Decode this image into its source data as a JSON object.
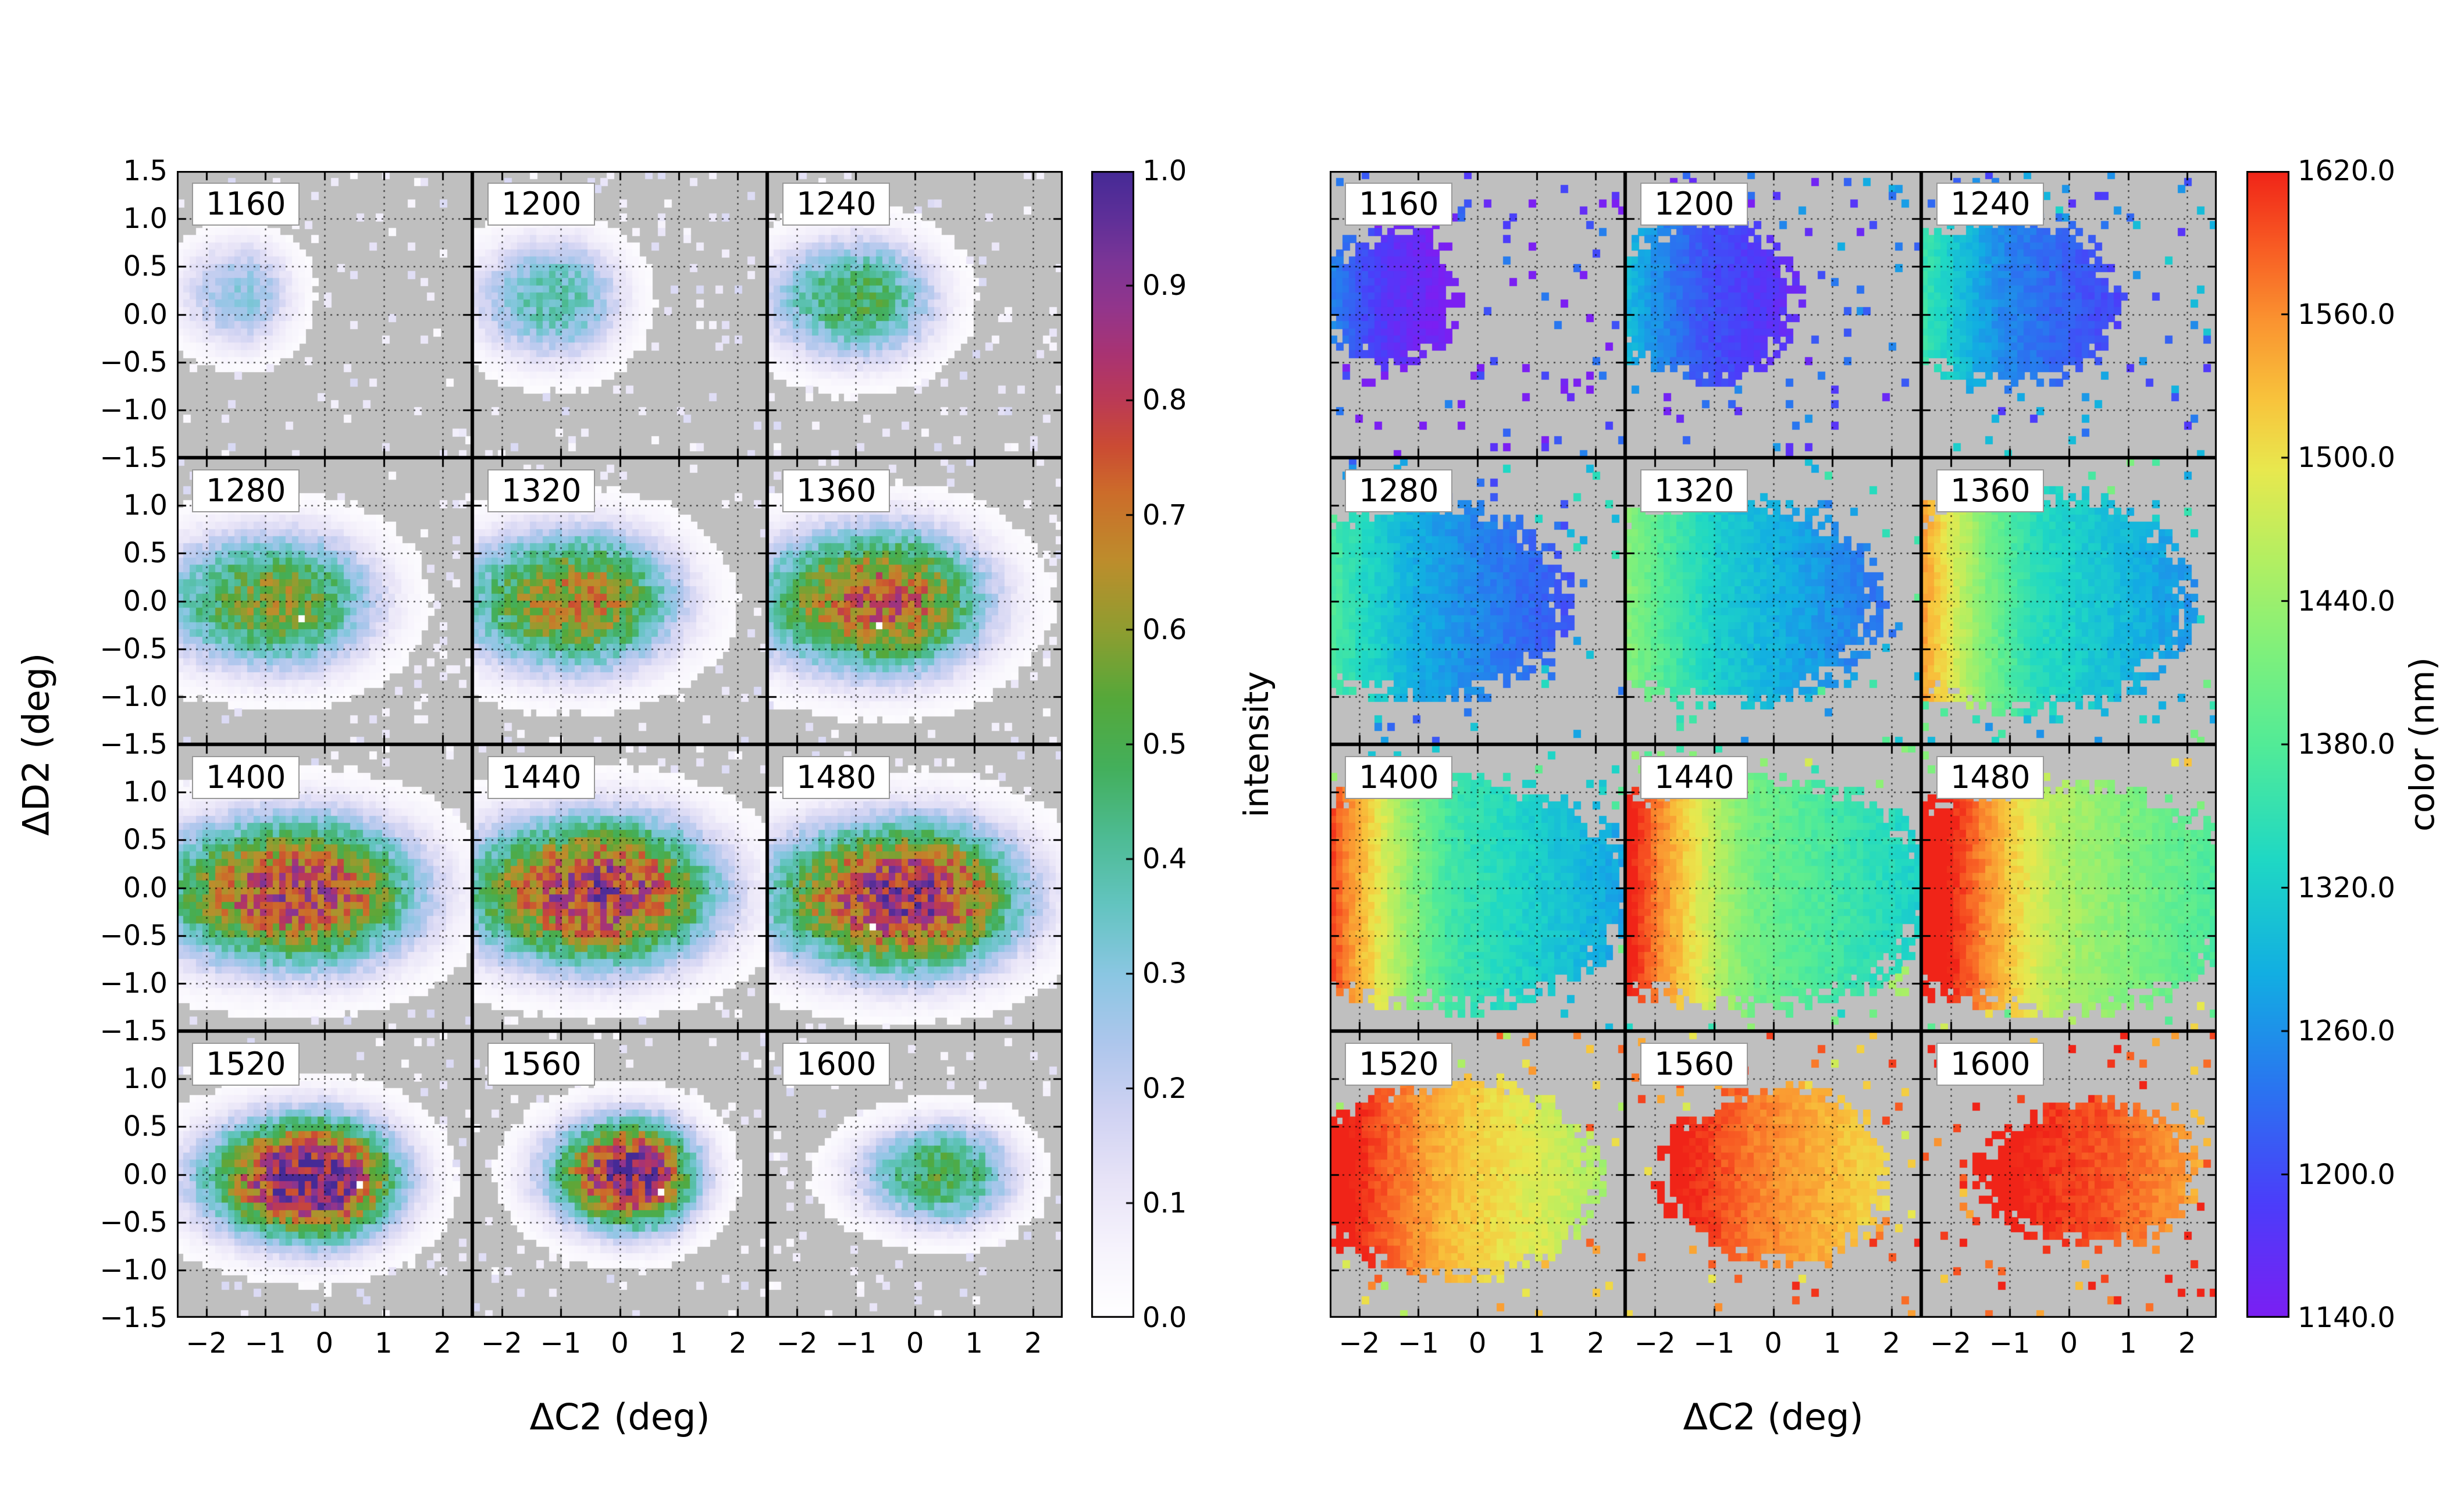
{
  "figure": {
    "background": "#ffffff",
    "axes_background": "#bfbfbf",
    "text_color": "#000000"
  },
  "chart_data": {
    "type": "heatmap",
    "description": "Two panels of 4x3 2D histograms vs (dC2,dD2); left panel colored by intensity, right panel colored by wavelength (nm). Each subplot is labeled with a wavelength from 1160 to 1600 nm in 40 nm steps.",
    "x_axis": {
      "label": "ΔC2 (deg)",
      "range": [
        -2.5,
        2.5
      ],
      "tick_values": [
        -2,
        -1,
        0,
        1,
        2
      ],
      "tick_labels": [
        "−2",
        "−1",
        "0",
        "1",
        "2"
      ]
    },
    "y_axis": {
      "label": "ΔD2 (deg)",
      "range": [
        -1.5,
        1.5
      ],
      "row0_tick_values": [
        1.5,
        1.0,
        0.5,
        0.0,
        -0.5,
        -1.0,
        -1.5
      ],
      "row0_tick_labels": [
        "1.5",
        "1.0",
        "0.5",
        "0.0",
        "−0.5",
        "−1.0",
        "−1.5"
      ],
      "row_tick_values": [
        1.0,
        0.5,
        0.0,
        -0.5,
        -1.0,
        -1.5
      ],
      "row_tick_labels": [
        "1.0",
        "0.5",
        "0.0",
        "−0.5",
        "−1.0",
        "−1.5"
      ]
    },
    "grid": {
      "rows": 4,
      "cols": 3,
      "gridline_style": "dotted"
    },
    "subplots": [
      {
        "label": "1160",
        "wavelength_nm": 1160,
        "blob": {
          "cx": -1.35,
          "cy": 0.2,
          "rx": 0.95,
          "ry": 0.55
        },
        "intensity_peak": 0.28,
        "color_center_nm": 1168,
        "color_gradient_nm_per_deg": 70
      },
      {
        "label": "1200",
        "wavelength_nm": 1200,
        "blob": {
          "cx": -1.05,
          "cy": 0.15,
          "rx": 1.25,
          "ry": 0.62
        },
        "intensity_peak": 0.38,
        "color_center_nm": 1205,
        "color_gradient_nm_per_deg": 60
      },
      {
        "label": "1240",
        "wavelength_nm": 1240,
        "blob": {
          "cx": -0.9,
          "cy": 0.15,
          "rx": 1.45,
          "ry": 0.62
        },
        "intensity_peak": 0.48,
        "color_center_nm": 1245,
        "color_gradient_nm_per_deg": 65
      },
      {
        "label": "1280",
        "wavelength_nm": 1280,
        "blob": {
          "cx": -0.75,
          "cy": 0.0,
          "rx": 1.85,
          "ry": 0.7
        },
        "intensity_peak": 0.58,
        "color_center_nm": 1275,
        "color_gradient_nm_per_deg": 50
      },
      {
        "label": "1320",
        "wavelength_nm": 1320,
        "blob": {
          "cx": -0.65,
          "cy": 0.0,
          "rx": 1.9,
          "ry": 0.72
        },
        "intensity_peak": 0.66,
        "color_center_nm": 1310,
        "color_gradient_nm_per_deg": 55
      },
      {
        "label": "1360",
        "wavelength_nm": 1360,
        "blob": {
          "cx": -0.5,
          "cy": 0.0,
          "rx": 2.0,
          "ry": 0.75
        },
        "intensity_peak": 0.74,
        "color_center_nm": 1340,
        "color_gradient_nm_per_deg": 90
      },
      {
        "label": "1400",
        "wavelength_nm": 1400,
        "blob": {
          "cx": -0.35,
          "cy": -0.05,
          "rx": 2.3,
          "ry": 0.78
        },
        "intensity_peak": 0.8,
        "color_center_nm": 1360,
        "color_gradient_nm_per_deg": 95
      },
      {
        "label": "1440",
        "wavelength_nm": 1440,
        "blob": {
          "cx": -0.25,
          "cy": -0.05,
          "rx": 2.25,
          "ry": 0.78
        },
        "intensity_peak": 0.84,
        "color_center_nm": 1405,
        "color_gradient_nm_per_deg": 85
      },
      {
        "label": "1480",
        "wavelength_nm": 1480,
        "blob": {
          "cx": -0.05,
          "cy": -0.1,
          "rx": 2.2,
          "ry": 0.78
        },
        "intensity_peak": 0.88,
        "color_center_nm": 1450,
        "color_gradient_nm_per_deg": 75
      },
      {
        "label": "1520",
        "wavelength_nm": 1520,
        "blob": {
          "cx": -0.15,
          "cy": -0.05,
          "rx": 1.65,
          "ry": 0.65
        },
        "intensity_peak": 0.97,
        "color_center_nm": 1520,
        "color_gradient_nm_per_deg": 45
      },
      {
        "label": "1560",
        "wavelength_nm": 1560,
        "blob": {
          "cx": 0.25,
          "cy": 0.0,
          "rx": 1.25,
          "ry": 0.58
        },
        "intensity_peak": 0.92,
        "color_center_nm": 1555,
        "color_gradient_nm_per_deg": 35
      },
      {
        "label": "1600",
        "wavelength_nm": 1600,
        "blob": {
          "cx": 0.55,
          "cy": 0.0,
          "rx": 1.3,
          "ry": 0.52
        },
        "intensity_peak": 0.5,
        "color_center_nm": 1595,
        "color_gradient_nm_per_deg": 20
      }
    ],
    "panels": [
      {
        "name": "intensity",
        "colorbar": {
          "label": "intensity",
          "min": 0.0,
          "max": 1.0,
          "tick_labels": [
            "1.0",
            "0.9",
            "0.8",
            "0.7",
            "0.6",
            "0.5",
            "0.4",
            "0.3",
            "0.2",
            "0.1",
            "0.0"
          ],
          "colormap": "intensity"
        }
      },
      {
        "name": "color",
        "colorbar": {
          "label": "color (nm)",
          "min": 1140.0,
          "max": 1620.0,
          "tick_labels": [
            "1620.0",
            "1560.0",
            "1500.0",
            "1440.0",
            "1380.0",
            "1320.0",
            "1260.0",
            "1200.0",
            "1140.0"
          ],
          "colormap": "rainbow"
        }
      }
    ],
    "colormaps": {
      "intensity": [
        [
          0.0,
          "#ffffff"
        ],
        [
          0.06,
          "#f6f3fc"
        ],
        [
          0.12,
          "#e7e3f7"
        ],
        [
          0.18,
          "#cfd2f2"
        ],
        [
          0.24,
          "#adc6ec"
        ],
        [
          0.3,
          "#8ac6e2"
        ],
        [
          0.36,
          "#63c4c0"
        ],
        [
          0.42,
          "#4dbb93"
        ],
        [
          0.48,
          "#43af5b"
        ],
        [
          0.54,
          "#55a83a"
        ],
        [
          0.6,
          "#8f9d30"
        ],
        [
          0.66,
          "#bd8d2c"
        ],
        [
          0.72,
          "#cc6c2a"
        ],
        [
          0.76,
          "#cb4b33"
        ],
        [
          0.8,
          "#bb3a55"
        ],
        [
          0.84,
          "#a93372"
        ],
        [
          0.88,
          "#93358b"
        ],
        [
          0.92,
          "#7c3596"
        ],
        [
          0.96,
          "#5e2f98"
        ],
        [
          1.0,
          "#452a96"
        ]
      ],
      "rainbow": [
        [
          0.0,
          "#7b1ff2"
        ],
        [
          0.1,
          "#4b3dfa"
        ],
        [
          0.2,
          "#2a74f0"
        ],
        [
          0.3,
          "#12aee2"
        ],
        [
          0.4,
          "#1fd8c4"
        ],
        [
          0.5,
          "#52eb97"
        ],
        [
          0.58,
          "#7ef07c"
        ],
        [
          0.66,
          "#b2ef62"
        ],
        [
          0.74,
          "#e8e84e"
        ],
        [
          0.8,
          "#f8c43c"
        ],
        [
          0.87,
          "#fa9330"
        ],
        [
          0.93,
          "#f85f24"
        ],
        [
          1.0,
          "#f02418"
        ]
      ]
    }
  }
}
